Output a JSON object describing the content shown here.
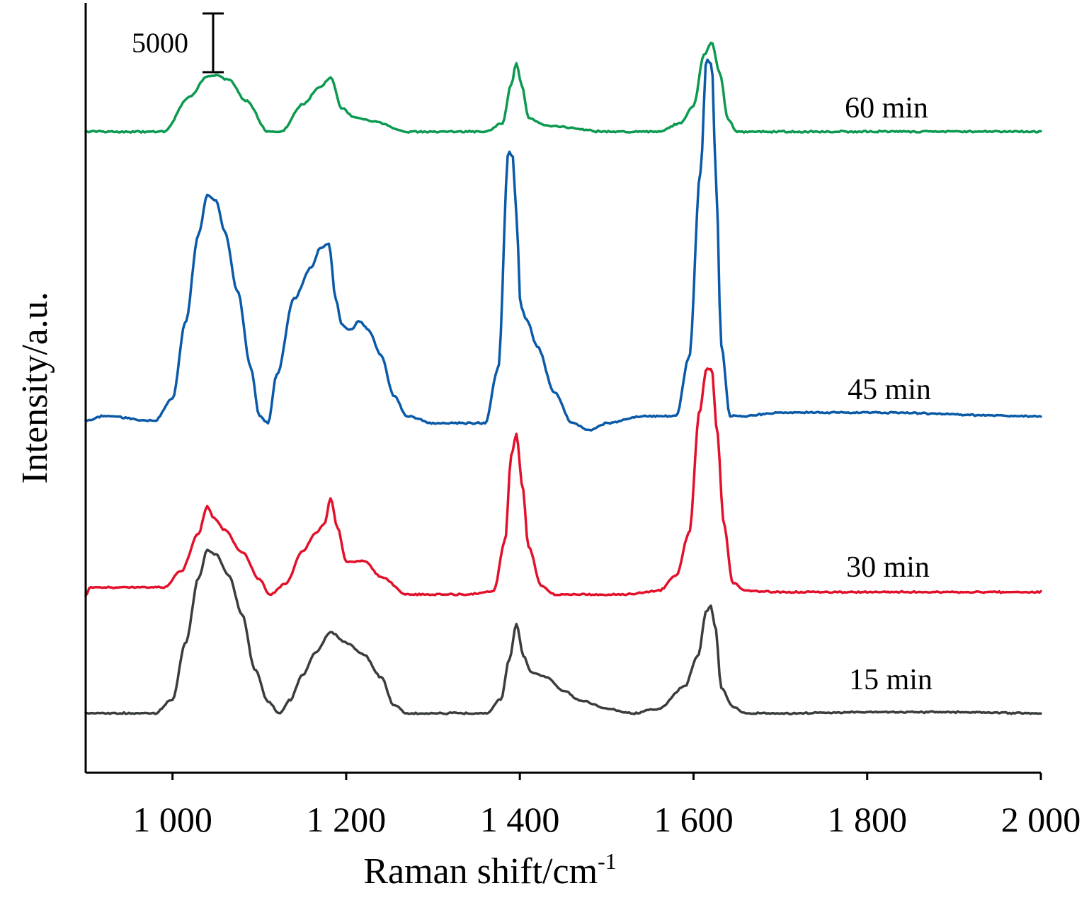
{
  "chart_data": {
    "type": "line",
    "title": "",
    "xlabel": "Raman shift/cm",
    "xlabel_superscript": "-1",
    "ylabel": "Intensity/a.u.",
    "xlim": [
      900,
      2000
    ],
    "x_ticks": [
      1000,
      1200,
      1400,
      1600,
      1800,
      2000
    ],
    "x_tick_labels": [
      "1 000",
      "1 200",
      "1 400",
      "1 600",
      "1 800",
      "2 000"
    ],
    "y_ticks": [],
    "grid": false,
    "legend": "none",
    "scale_bar": {
      "label": "5000",
      "value": 5000
    },
    "series": [
      {
        "name": "15 min",
        "color": "#3a3d3f",
        "x": [
          900,
          980,
          1000,
          1015,
          1030,
          1040,
          1050,
          1065,
          1080,
          1095,
          1110,
          1123,
          1135,
          1150,
          1165,
          1182,
          1200,
          1220,
          1240,
          1255,
          1270,
          1300,
          1340,
          1362,
          1378,
          1388,
          1396,
          1404,
          1413,
          1430,
          1450,
          1470,
          1500,
          1530,
          1560,
          1590,
          1605,
          1615,
          1620,
          1625,
          1632,
          1645,
          1660,
          1700,
          1800,
          1900,
          2000
        ],
        "y": [
          0,
          0,
          1200,
          6000,
          11500,
          13900,
          13500,
          11700,
          8400,
          3700,
          1000,
          0,
          1100,
          3300,
          5200,
          6900,
          6000,
          5000,
          3100,
          700,
          0,
          0,
          0,
          0,
          1200,
          4600,
          7600,
          4900,
          3500,
          3100,
          1900,
          1100,
          400,
          0,
          400,
          2300,
          4900,
          8700,
          9100,
          7400,
          2200,
          600,
          0,
          0,
          100,
          100,
          0
        ]
      },
      {
        "name": "30 min",
        "color": "#e3102b",
        "x": [
          900,
          905,
          990,
          1010,
          1030,
          1040,
          1048,
          1060,
          1080,
          1100,
          1112,
          1130,
          1150,
          1165,
          1175,
          1182,
          1190,
          1200,
          1210,
          1220,
          1240,
          1270,
          1300,
          1340,
          1370,
          1383,
          1390,
          1396,
          1403,
          1410,
          1425,
          1440,
          1470,
          1520,
          1560,
          1580,
          1595,
          1607,
          1615,
          1621,
          1627,
          1635,
          1645,
          1660,
          1700,
          1800,
          2000
        ],
        "y": [
          -200,
          600,
          600,
          2000,
          5200,
          7500,
          6500,
          5500,
          3600,
          1300,
          0,
          900,
          3700,
          5200,
          6000,
          8200,
          5700,
          2800,
          2800,
          2900,
          1500,
          0,
          0,
          0,
          300,
          4600,
          11800,
          13600,
          9200,
          4000,
          700,
          0,
          0,
          0,
          300,
          1600,
          5200,
          15600,
          19200,
          19200,
          14000,
          6000,
          1000,
          300,
          200,
          200,
          200
        ]
      },
      {
        "name": "45 min",
        "color": "#0a5aa8",
        "x": [
          900,
          920,
          980,
          1000,
          1015,
          1030,
          1040,
          1050,
          1060,
          1075,
          1090,
          1100,
          1110,
          1120,
          1140,
          1160,
          1170,
          1180,
          1188,
          1195,
          1205,
          1215,
          1225,
          1240,
          1255,
          1270,
          1300,
          1330,
          1360,
          1375,
          1387,
          1392,
          1396,
          1401,
          1408,
          1420,
          1440,
          1460,
          1480,
          1500,
          1540,
          1580,
          1595,
          1608,
          1615,
          1621,
          1626,
          1632,
          1642,
          1655,
          1700,
          1800,
          2000
        ],
        "y": [
          -400,
          0,
          -400,
          1500,
          8000,
          15500,
          18800,
          18400,
          15700,
          10600,
          4200,
          0,
          -600,
          3500,
          10000,
          12700,
          14300,
          14700,
          10000,
          7800,
          7300,
          8100,
          7400,
          5200,
          1700,
          0,
          -600,
          -600,
          -600,
          4000,
          22500,
          22000,
          17100,
          9300,
          8200,
          5900,
          2000,
          -600,
          -1200,
          -600,
          0,
          0,
          5000,
          20800,
          30400,
          30000,
          20000,
          6000,
          0,
          0,
          300,
          300,
          0
        ]
      },
      {
        "name": "60 min",
        "color": "#0c9a50",
        "x": [
          900,
          990,
          1020,
          1040,
          1050,
          1065,
          1085,
          1110,
          1125,
          1150,
          1170,
          1182,
          1195,
          1210,
          1230,
          1270,
          1300,
          1360,
          1380,
          1390,
          1396,
          1402,
          1410,
          1430,
          1500,
          1560,
          1585,
          1600,
          1612,
          1621,
          1630,
          1640,
          1650,
          1700,
          1800,
          2000
        ],
        "y": [
          0,
          0,
          3000,
          4700,
          4800,
          4400,
          2600,
          0,
          0,
          2300,
          3800,
          4600,
          2000,
          1200,
          900,
          0,
          0,
          0,
          700,
          4000,
          5800,
          4000,
          1200,
          500,
          0,
          0,
          700,
          2200,
          6500,
          7600,
          5000,
          1000,
          0,
          0,
          0,
          0
        ]
      }
    ]
  }
}
